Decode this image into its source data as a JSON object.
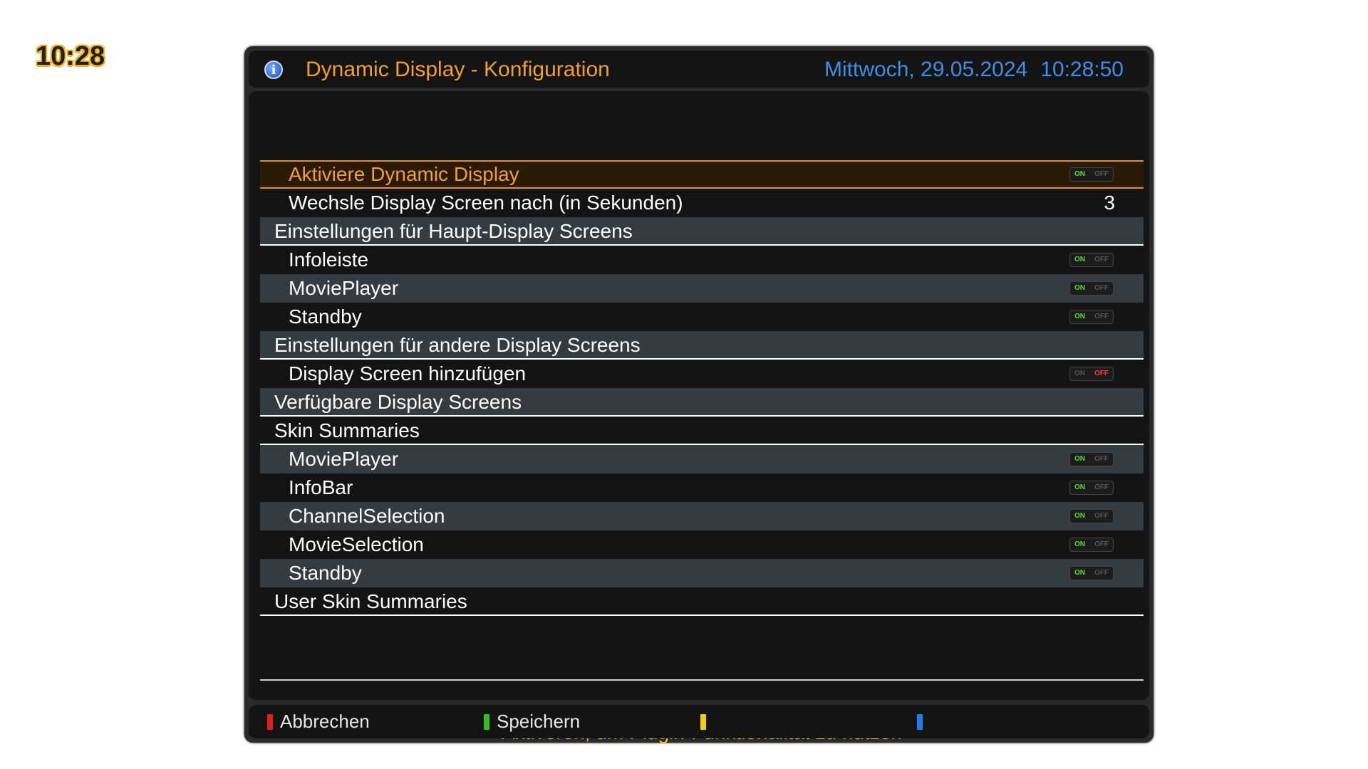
{
  "clock": "10:28",
  "header": {
    "title": "Dynamic Display - Konfiguration",
    "date": "Mittwoch, 29.05.2024",
    "time": "10:28:50"
  },
  "toggle_text": {
    "on": "ON",
    "off": "OFF"
  },
  "rows": [
    {
      "label": "Aktiviere Dynamic Display",
      "kind": "toggle",
      "value": "on"
    },
    {
      "label": "Wechsle Display Screen nach (in Sekunden)",
      "kind": "number",
      "value": "3"
    },
    {
      "label": "Einstellungen für Haupt-Display Screens",
      "kind": "section"
    },
    {
      "label": "Infoleiste",
      "kind": "toggle",
      "value": "on"
    },
    {
      "label": "MoviePlayer",
      "kind": "toggle",
      "value": "on"
    },
    {
      "label": "Standby",
      "kind": "toggle",
      "value": "on"
    },
    {
      "label": "Einstellungen für andere Display Screens",
      "kind": "section"
    },
    {
      "label": "Display Screen hinzufügen",
      "kind": "toggle",
      "value": "off"
    },
    {
      "label": "Verfügbare Display Screens",
      "kind": "section"
    },
    {
      "label": "Skin Summaries",
      "kind": "section"
    },
    {
      "label": "MoviePlayer",
      "kind": "toggle",
      "value": "on"
    },
    {
      "label": "InfoBar",
      "kind": "toggle",
      "value": "on"
    },
    {
      "label": "ChannelSelection",
      "kind": "toggle",
      "value": "on"
    },
    {
      "label": "MovieSelection",
      "kind": "toggle",
      "value": "on"
    },
    {
      "label": "Standby",
      "kind": "toggle",
      "value": "on"
    },
    {
      "label": "User Skin Summaries",
      "kind": "section"
    }
  ],
  "hint": "Aktiveren, um Plugin-Funktionalität zu nutzen",
  "footer": {
    "red": {
      "label": "Abbrechen",
      "color": "#e02020"
    },
    "green": {
      "label": "Speichern",
      "color": "#30c020"
    },
    "yellow": {
      "label": "",
      "color": "#f0d000"
    },
    "blue": {
      "label": "",
      "color": "#1e7ef0"
    }
  },
  "colors": {
    "accent": "#f0a030",
    "datetime": "#3f8ee8",
    "hint": "#e8c21c"
  }
}
